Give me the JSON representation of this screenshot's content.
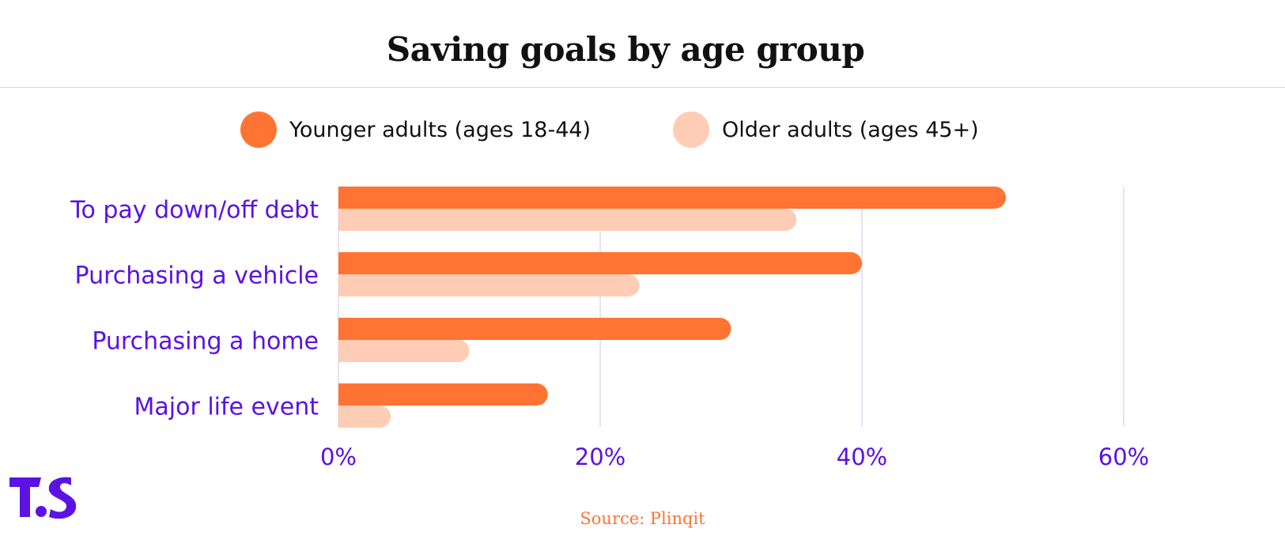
{
  "title": "Saving goals by age group",
  "source": "Source: Plinqit",
  "logo": {
    "icon": "ts-logo-icon",
    "text": "TS",
    "color": "#5b12e3"
  },
  "colors": {
    "younger": "#ff7433",
    "older": "#ffcdb5",
    "labels": "#5b12e3",
    "grid": "#dedcf0"
  },
  "chart_data": {
    "type": "bar",
    "orientation": "horizontal",
    "categories": [
      "To pay down/off debt",
      "Purchasing a vehicle",
      "Purchasing a home",
      "Major life event"
    ],
    "series": [
      {
        "name": "Younger adults (ages 18-44)",
        "values": [
          51,
          40,
          30,
          16
        ]
      },
      {
        "name": "Older adults (ages 45+)",
        "values": [
          35,
          23,
          10,
          4
        ]
      }
    ],
    "xlim": [
      0,
      60
    ],
    "ticks": [
      0,
      20,
      40,
      60
    ],
    "tick_labels": [
      "0%",
      "20%",
      "40%",
      "60%"
    ],
    "grid": true,
    "legend": "top-center"
  }
}
